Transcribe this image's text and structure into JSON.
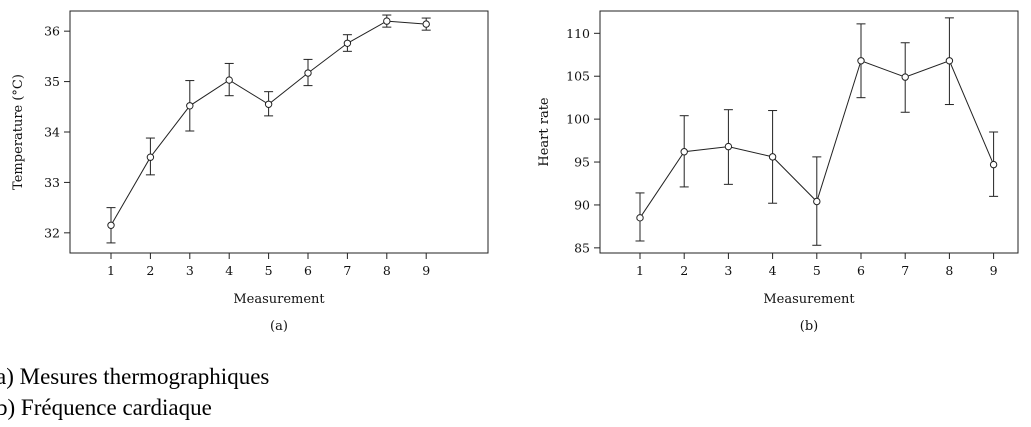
{
  "chart_data": [
    {
      "type": "line",
      "panel_label": "(a)",
      "xlabel": "Measurement",
      "ylabel": "Temperature (°C)",
      "x": [
        1,
        2,
        3,
        4,
        5,
        6,
        7,
        8,
        9
      ],
      "y": [
        32.15,
        33.5,
        34.52,
        35.03,
        34.55,
        35.17,
        35.76,
        36.2,
        36.14
      ],
      "err_low": [
        31.8,
        33.15,
        34.02,
        34.72,
        34.32,
        34.92,
        35.6,
        36.08,
        36.02
      ],
      "err_high": [
        32.5,
        33.88,
        35.02,
        35.36,
        34.8,
        35.44,
        35.93,
        36.32,
        36.26
      ],
      "xticks": [
        "1",
        "2",
        "3",
        "4",
        "5",
        "6",
        "7",
        "8",
        "9"
      ],
      "yticks": [
        "32",
        "33",
        "34",
        "35",
        "36"
      ],
      "ylim": [
        31.6,
        36.4
      ],
      "grid": false
    },
    {
      "type": "line",
      "panel_label": "(b)",
      "xlabel": "Measurement",
      "ylabel": "Heart rate",
      "x": [
        1,
        2,
        3,
        4,
        5,
        6,
        7,
        8,
        9
      ],
      "y": [
        88.5,
        96.2,
        96.8,
        95.6,
        90.4,
        106.8,
        104.9,
        106.8,
        94.7
      ],
      "err_low": [
        85.8,
        92.1,
        92.4,
        90.2,
        85.3,
        102.5,
        100.8,
        101.7,
        91.0
      ],
      "err_high": [
        91.4,
        100.4,
        101.1,
        101.0,
        95.6,
        111.1,
        108.9,
        111.8,
        98.5
      ],
      "xticks": [
        "1",
        "2",
        "3",
        "4",
        "5",
        "6",
        "7",
        "8",
        "9"
      ],
      "yticks": [
        "85",
        "90",
        "95",
        "100",
        "105",
        "110"
      ],
      "ylim": [
        84.4,
        112.6
      ],
      "grid": false
    }
  ],
  "captions": {
    "a": "a) Mesures thermographiques",
    "b": "b) Fréquence cardiaque"
  }
}
